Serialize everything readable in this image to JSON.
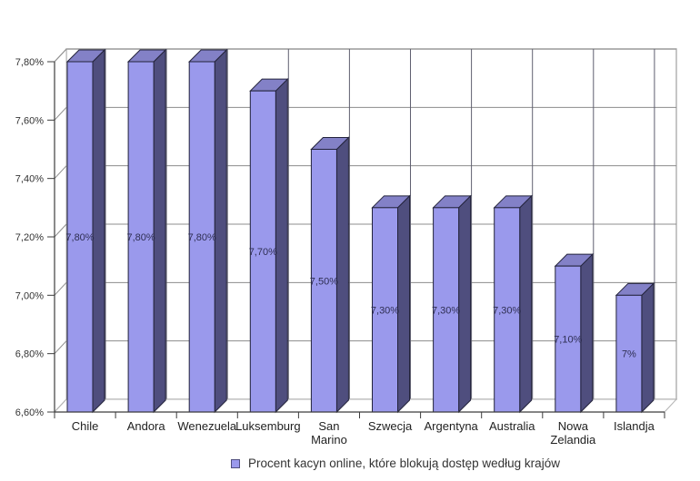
{
  "chart_data": {
    "type": "bar",
    "style": "3d-column",
    "title": "",
    "categories": [
      "Chile",
      "Andora",
      "Wenezuela",
      "Luksemburg",
      "San Marino",
      "Szwecja",
      "Argentyna",
      "Australia",
      "Nowa Zelandia",
      "Islandja"
    ],
    "values": [
      7.8,
      7.8,
      7.8,
      7.7,
      7.5,
      7.3,
      7.3,
      7.3,
      7.1,
      7.0
    ],
    "value_labels": [
      "7,80%",
      "7,80%",
      "7,80%",
      "7,70%",
      "7,50%",
      "7,30%",
      "7,30%",
      "7,30%",
      "7,10%",
      "7%"
    ],
    "ylim": [
      6.6,
      7.8
    ],
    "ytick_step": 0.2,
    "ytick_labels": [
      "6,60%",
      "6,80%",
      "7,00%",
      "7,20%",
      "7,40%",
      "7,60%",
      "7,80%"
    ],
    "xlabel": "",
    "ylabel": "",
    "grid": true,
    "legend": "Procent kacyn online, które blokują dostęp według krajów",
    "legend_position": "bottom",
    "colors": {
      "bar_front": "#9a99ec",
      "bar_top": "#8381c7",
      "bar_side": "#4f4e7e",
      "bar_outline": "#23233b",
      "grid_h": "#8c8c8c",
      "grid_v": "#5f5f70",
      "wall_border": "#b3b3b3",
      "axis": "#3c3c3c",
      "tick_text": "#333333",
      "category_text": "#1f1f1f",
      "value_text": "#2e2e52",
      "legend_text": "#333333",
      "background": "#ffffff"
    }
  }
}
